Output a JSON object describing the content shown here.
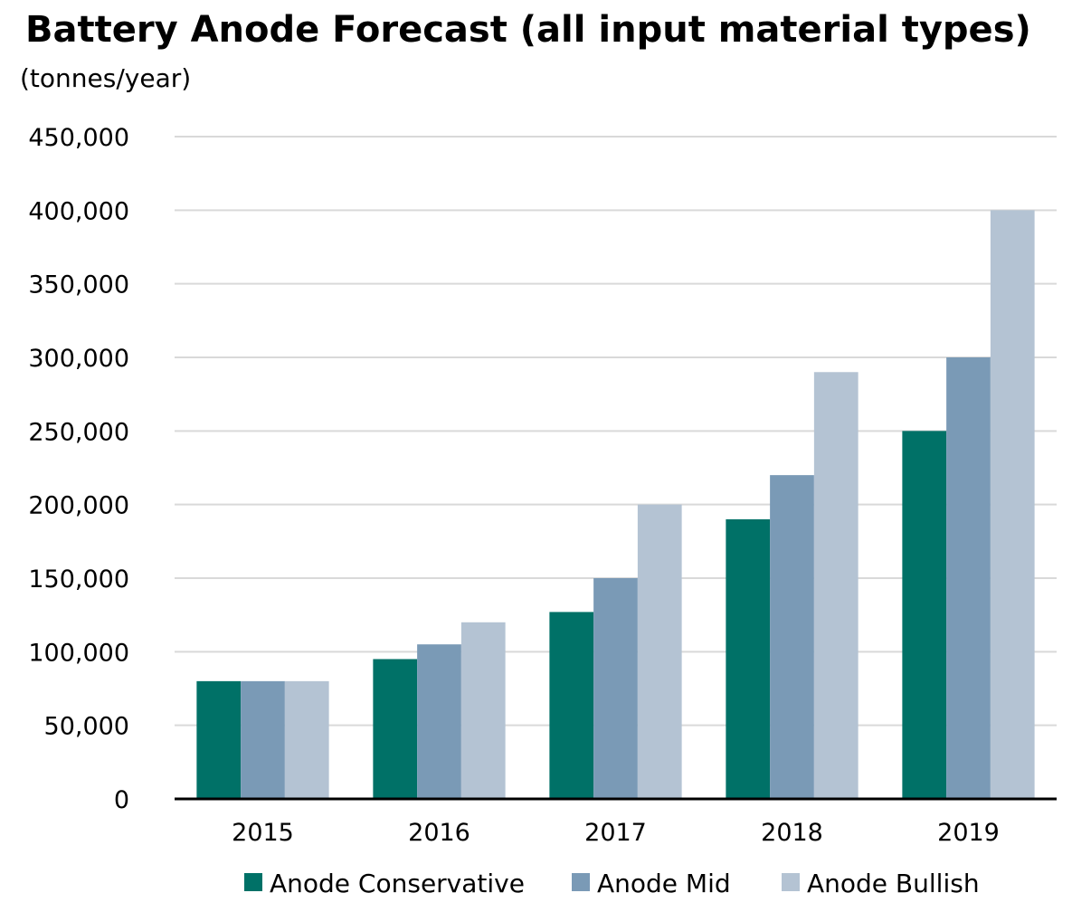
{
  "chart_data": {
    "type": "bar",
    "title": "Battery Anode Forecast (all input material types)",
    "subtitle": "(tonnes/year)",
    "xlabel": "",
    "ylabel": "",
    "categories": [
      "2015",
      "2016",
      "2017",
      "2018",
      "2019"
    ],
    "series": [
      {
        "name": "Anode Conservative",
        "color": "#007167",
        "values": [
          80000,
          95000,
          127000,
          190000,
          250000
        ]
      },
      {
        "name": "Anode Mid",
        "color": "#7a9ab6",
        "values": [
          80000,
          105000,
          150000,
          220000,
          300000
        ]
      },
      {
        "name": "Anode Bullish",
        "color": "#b4c3d3",
        "values": [
          80000,
          120000,
          200000,
          290000,
          400000
        ]
      }
    ],
    "ylim": [
      0,
      450000
    ],
    "yticks": [
      0,
      50000,
      100000,
      150000,
      200000,
      250000,
      300000,
      350000,
      400000,
      450000
    ],
    "ytick_labels": [
      "0",
      "50,000",
      "100,000",
      "150,000",
      "200,000",
      "250,000",
      "300,000",
      "350,000",
      "400,000",
      "450,000"
    ],
    "grid": true,
    "legend_position": "bottom"
  }
}
